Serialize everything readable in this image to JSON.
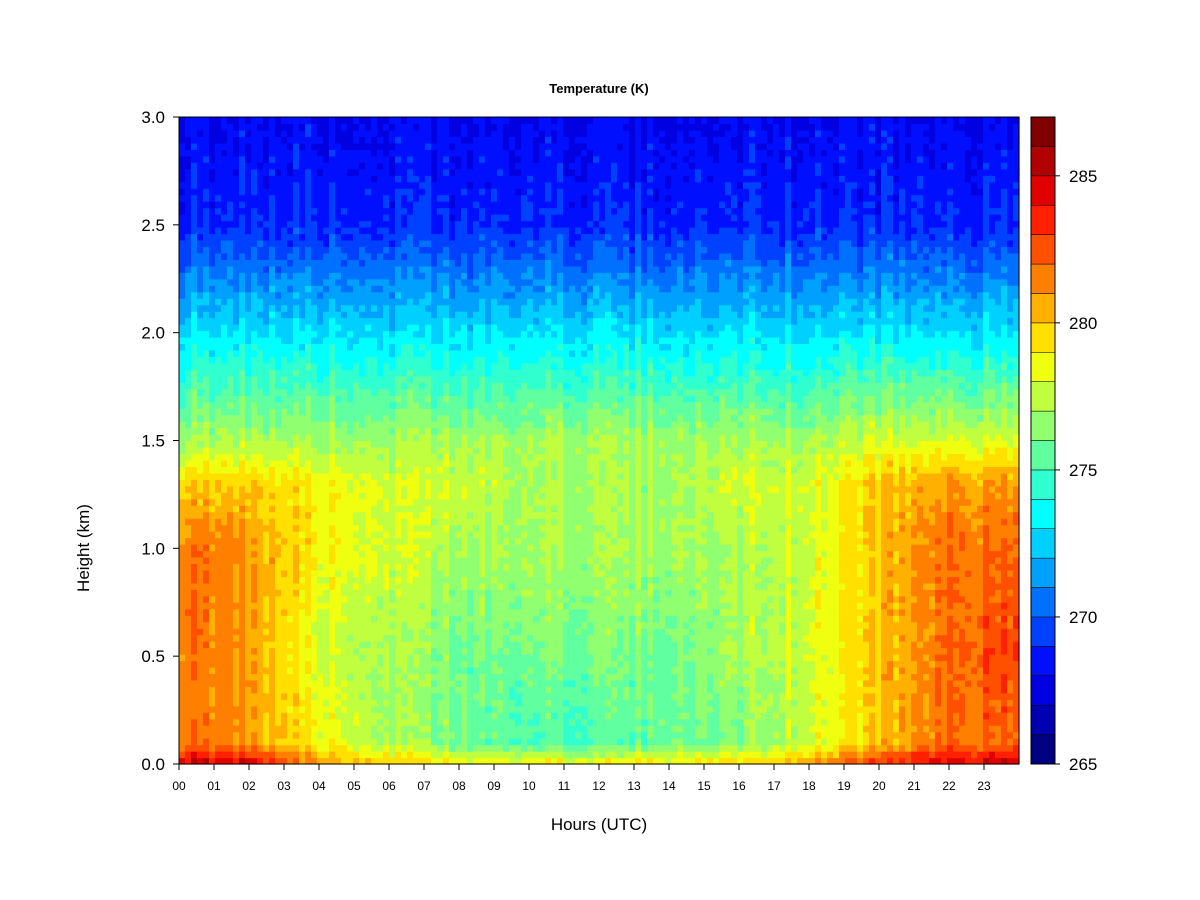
{
  "chart_data": {
    "type": "heatmap",
    "title": "Temperature (K)",
    "xlabel": "Hours (UTC)",
    "ylabel": "Height (km)",
    "xlim": [
      0,
      24
    ],
    "ylim": [
      0.0,
      3.0
    ],
    "x_ticks": [
      "00",
      "01",
      "02",
      "03",
      "04",
      "05",
      "06",
      "07",
      "08",
      "09",
      "10",
      "11",
      "12",
      "13",
      "14",
      "15",
      "16",
      "17",
      "18",
      "19",
      "20",
      "21",
      "22",
      "23"
    ],
    "y_ticks": [
      "0.0",
      "0.5",
      "1.0",
      "1.5",
      "2.0",
      "2.5",
      "3.0"
    ],
    "colorbar": {
      "label": "",
      "range": [
        265,
        287
      ],
      "step": 1,
      "ticks": [
        "265",
        "270",
        "275",
        "280",
        "285"
      ],
      "colors": [
        "#000080",
        "#0000b0",
        "#0000e0",
        "#0010ff",
        "#0040ff",
        "#0070ff",
        "#00a0ff",
        "#00d0ff",
        "#00ffff",
        "#30ffd0",
        "#60ffa0",
        "#90ff70",
        "#c0ff40",
        "#f0ff10",
        "#ffe000",
        "#ffb000",
        "#ff8000",
        "#ff5000",
        "#ff2000",
        "#e00000",
        "#b00000",
        "#800000"
      ]
    },
    "grid": false,
    "profiles": [
      {
        "hour": 0,
        "heights": [
          0.0,
          0.1,
          0.5,
          1.0,
          1.3,
          1.5,
          2.0,
          2.5,
          3.0
        ],
        "values": [
          285,
          282,
          282,
          282,
          280,
          277,
          273,
          269,
          268
        ]
      },
      {
        "hour": 2,
        "heights": [
          0.0,
          0.1,
          0.5,
          1.0,
          1.3,
          1.5,
          2.0,
          2.5,
          3.0
        ],
        "values": [
          285,
          281,
          281,
          281,
          280,
          277,
          273,
          269,
          268
        ]
      },
      {
        "hour": 4,
        "heights": [
          0.0,
          0.1,
          0.5,
          1.0,
          1.3,
          1.5,
          2.0,
          2.5,
          3.0
        ],
        "values": [
          281,
          279,
          278,
          279,
          279,
          277,
          273,
          269,
          268
        ]
      },
      {
        "hour": 6,
        "heights": [
          0.0,
          0.1,
          0.5,
          1.0,
          1.3,
          1.5,
          2.0,
          2.5,
          3.0
        ],
        "values": [
          280,
          277,
          277,
          278,
          278,
          277,
          273,
          269,
          268
        ]
      },
      {
        "hour": 8,
        "heights": [
          0.0,
          0.1,
          0.5,
          1.0,
          1.3,
          1.5,
          2.0,
          2.5,
          3.0
        ],
        "values": [
          279,
          276,
          276,
          277,
          278,
          277,
          273,
          269,
          268
        ]
      },
      {
        "hour": 10,
        "heights": [
          0.0,
          0.1,
          0.5,
          1.0,
          1.3,
          1.5,
          2.0,
          2.5,
          3.0
        ],
        "values": [
          279,
          275,
          276,
          277,
          277,
          277,
          273,
          269,
          268
        ]
      },
      {
        "hour": 12,
        "heights": [
          0.0,
          0.1,
          0.5,
          1.0,
          1.3,
          1.5,
          2.0,
          2.5,
          3.0
        ],
        "values": [
          279,
          275,
          276,
          277,
          277,
          277,
          273,
          269,
          268
        ]
      },
      {
        "hour": 14,
        "heights": [
          0.0,
          0.1,
          0.5,
          1.0,
          1.3,
          1.5,
          2.0,
          2.5,
          3.0
        ],
        "values": [
          279,
          276,
          276,
          277,
          277,
          277,
          273,
          269,
          268
        ]
      },
      {
        "hour": 16,
        "heights": [
          0.0,
          0.1,
          0.5,
          1.0,
          1.3,
          1.5,
          2.0,
          2.5,
          3.0
        ],
        "values": [
          280,
          276,
          277,
          277,
          278,
          277,
          273,
          269,
          268
        ]
      },
      {
        "hour": 18,
        "heights": [
          0.0,
          0.1,
          0.5,
          1.0,
          1.3,
          1.5,
          2.0,
          2.5,
          3.0
        ],
        "values": [
          281,
          278,
          278,
          278,
          278,
          277,
          273,
          269,
          268
        ]
      },
      {
        "hour": 20,
        "heights": [
          0.0,
          0.1,
          0.5,
          1.0,
          1.3,
          1.5,
          2.0,
          2.5,
          3.0
        ],
        "values": [
          283,
          280,
          280,
          280,
          280,
          278,
          273,
          269,
          268
        ]
      },
      {
        "hour": 22,
        "heights": [
          0.0,
          0.1,
          0.5,
          1.0,
          1.3,
          1.5,
          2.0,
          2.5,
          3.0
        ],
        "values": [
          285,
          282,
          282,
          282,
          281,
          278,
          273,
          269,
          268
        ]
      },
      {
        "hour": 24,
        "heights": [
          0.0,
          0.1,
          0.5,
          1.0,
          1.3,
          1.5,
          2.0,
          2.5,
          3.0
        ],
        "values": [
          285,
          282,
          283,
          282,
          281,
          278,
          273,
          269,
          268
        ]
      }
    ]
  }
}
